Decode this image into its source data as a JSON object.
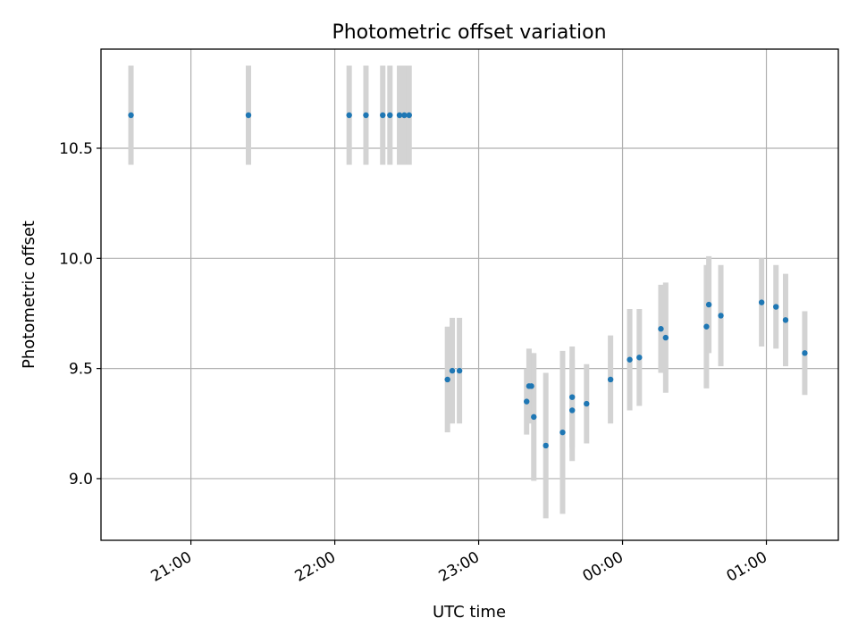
{
  "chart_data": {
    "type": "scatter",
    "title": "Photometric offset variation",
    "xlabel": "UTC time",
    "ylabel": "Photometric offset",
    "x_unit": "hours",
    "xlim": [
      20.375,
      1.5
    ],
    "ylim": [
      8.72,
      10.95
    ],
    "xticks": [
      {
        "value": "21:00",
        "label": "21:00"
      },
      {
        "value": "22:00",
        "label": "22:00"
      },
      {
        "value": "23:00",
        "label": "23:00"
      },
      {
        "value": "00:00",
        "label": "00:00"
      },
      {
        "value": "01:00",
        "label": "01:00"
      }
    ],
    "yticks": [
      {
        "value": 9.0,
        "label": "9.0"
      },
      {
        "value": 9.5,
        "label": "9.5"
      },
      {
        "value": 10.0,
        "label": "10.0"
      },
      {
        "value": 10.5,
        "label": "10.5"
      }
    ],
    "grid": true,
    "colors": {
      "marker": "#1f77b4",
      "errorbar": "#d3d3d3",
      "grid": "#b0b0b0",
      "axes": "#000000"
    },
    "points": [
      {
        "x": "20:35",
        "y": 10.65,
        "err": 0.225
      },
      {
        "x": "21:24",
        "y": 10.65,
        "err": 0.225
      },
      {
        "x": "22:06",
        "y": 10.65,
        "err": 0.225
      },
      {
        "x": "22:13",
        "y": 10.65,
        "err": 0.225
      },
      {
        "x": "22:20",
        "y": 10.65,
        "err": 0.225
      },
      {
        "x": "22:23",
        "y": 10.65,
        "err": 0.225
      },
      {
        "x": "22:27",
        "y": 10.65,
        "err": 0.225
      },
      {
        "x": "22:29",
        "y": 10.65,
        "err": 0.225
      },
      {
        "x": "22:31",
        "y": 10.65,
        "err": 0.225
      },
      {
        "x": "22:47",
        "y": 9.45,
        "err": 0.24
      },
      {
        "x": "22:49",
        "y": 9.49,
        "err": 0.24
      },
      {
        "x": "22:52",
        "y": 9.49,
        "err": 0.24
      },
      {
        "x": "23:20",
        "y": 9.35,
        "err": 0.15
      },
      {
        "x": "23:21",
        "y": 9.42,
        "err": 0.17
      },
      {
        "x": "23:22",
        "y": 9.42,
        "err": 0.15
      },
      {
        "x": "23:23",
        "y": 9.28,
        "err": 0.29
      },
      {
        "x": "23:28",
        "y": 9.15,
        "err": 0.33
      },
      {
        "x": "23:35",
        "y": 9.21,
        "err": 0.37
      },
      {
        "x": "23:39",
        "y": 9.31,
        "err": 0.23
      },
      {
        "x": "23:39",
        "y": 9.37,
        "err": 0.23
      },
      {
        "x": "23:45",
        "y": 9.34,
        "err": 0.18
      },
      {
        "x": "23:55",
        "y": 9.45,
        "err": 0.2
      },
      {
        "x": "00:03",
        "y": 9.54,
        "err": 0.23
      },
      {
        "x": "00:07",
        "y": 9.55,
        "err": 0.22
      },
      {
        "x": "00:16",
        "y": 9.68,
        "err": 0.2
      },
      {
        "x": "00:18",
        "y": 9.64,
        "err": 0.25
      },
      {
        "x": "00:35",
        "y": 9.69,
        "err": 0.28
      },
      {
        "x": "00:36",
        "y": 9.79,
        "err": 0.22
      },
      {
        "x": "00:41",
        "y": 9.74,
        "err": 0.23
      },
      {
        "x": "00:58",
        "y": 9.8,
        "err": 0.2
      },
      {
        "x": "01:04",
        "y": 9.78,
        "err": 0.19
      },
      {
        "x": "01:08",
        "y": 9.72,
        "err": 0.21
      },
      {
        "x": "01:16",
        "y": 9.57,
        "err": 0.19
      }
    ]
  }
}
